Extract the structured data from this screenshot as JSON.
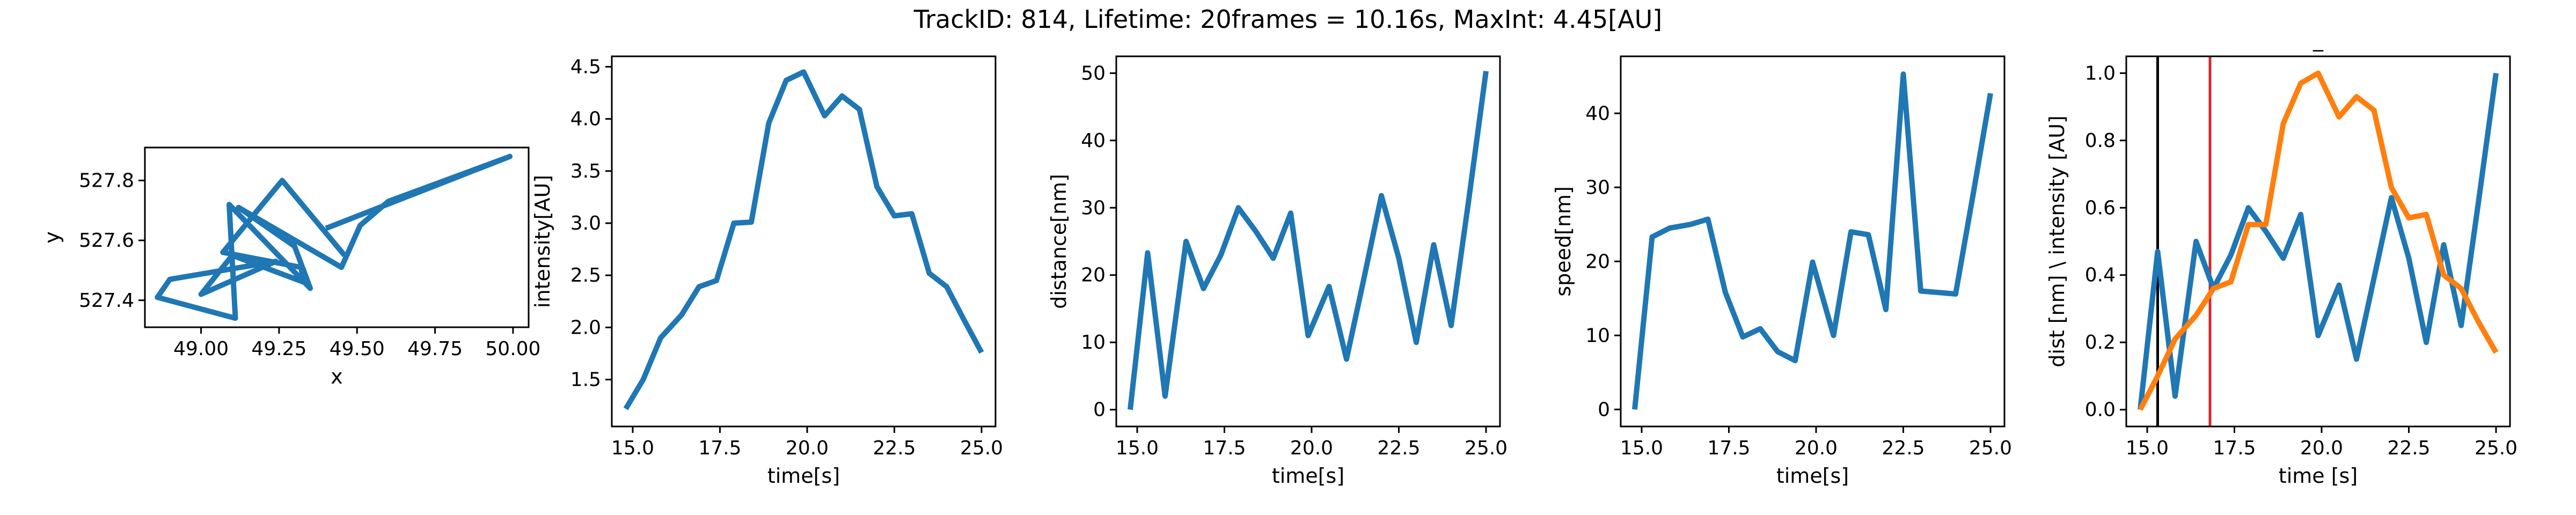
{
  "figure": {
    "title": "TrackID: 814, Lifetime: 20frames = 10.16s, MaxInt: 4.45[AU]"
  },
  "chart_data": [
    {
      "id": "xy",
      "type": "line",
      "title": "",
      "xlabel": "x",
      "ylabel": "y",
      "xlim": [
        48.82,
        50.05
      ],
      "ylim": [
        527.31,
        527.91
      ],
      "xticks": [
        49.0,
        49.25,
        49.5,
        49.75,
        50.0
      ],
      "xticklabels": [
        "49.00",
        "49.25",
        "49.50",
        "49.75",
        "50.00"
      ],
      "yticks": [
        527.4,
        527.6,
        527.8
      ],
      "yticklabels": [
        "527.4",
        "527.6",
        "527.8"
      ],
      "grid": false,
      "series": [
        {
          "color": "#1f77b4",
          "x": [
            49.4,
            49.99,
            49.6,
            49.51,
            49.45,
            49.12,
            49.3,
            49.35,
            49.09,
            49.11,
            48.86,
            48.9,
            49.24,
            49.0,
            49.1,
            49.33,
            49.32,
            49.07,
            49.26,
            49.46
          ],
          "y": [
            527.64,
            527.88,
            527.73,
            527.65,
            527.51,
            527.71,
            527.58,
            527.44,
            527.72,
            527.34,
            527.41,
            527.47,
            527.53,
            527.42,
            527.55,
            527.46,
            527.51,
            527.56,
            527.8,
            527.55
          ]
        }
      ]
    },
    {
      "id": "intensity",
      "type": "line",
      "title": "",
      "xlabel": "time[s]",
      "ylabel": "intensity[AU]",
      "xlim": [
        14.4,
        25.4
      ],
      "ylim": [
        1.05,
        4.6
      ],
      "xticks": [
        15,
        17.5,
        20,
        22.5,
        25
      ],
      "xticklabels": [
        "15.0",
        "17.5",
        "20.0",
        "22.5",
        "25.0"
      ],
      "yticks": [
        1.5,
        2.0,
        2.5,
        3.0,
        3.5,
        4.0,
        4.5
      ],
      "yticklabels": [
        "1.5",
        "2.0",
        "2.5",
        "3.0",
        "3.5",
        "4.0",
        "4.5"
      ],
      "grid": false,
      "series": [
        {
          "color": "#1f77b4",
          "x": [
            14.8,
            15.3,
            15.8,
            16.4,
            16.9,
            17.4,
            17.9,
            18.4,
            18.9,
            19.4,
            19.9,
            20.5,
            21.0,
            21.5,
            22.0,
            22.5,
            23.0,
            23.5,
            24.0,
            24.5,
            25.0
          ],
          "y": [
            1.22,
            1.5,
            1.9,
            2.12,
            2.39,
            2.45,
            3.0,
            3.01,
            3.96,
            4.37,
            4.45,
            4.03,
            4.22,
            4.09,
            3.35,
            3.07,
            3.09,
            2.52,
            2.39,
            2.07,
            1.76
          ]
        }
      ]
    },
    {
      "id": "distance",
      "type": "line",
      "title": "",
      "xlabel": "time[s]",
      "ylabel": "distance[nm]",
      "xlim": [
        14.4,
        25.4
      ],
      "ylim": [
        -2.5,
        52.5
      ],
      "xticks": [
        15,
        17.5,
        20,
        22.5,
        25
      ],
      "xticklabels": [
        "15.0",
        "17.5",
        "20.0",
        "22.5",
        "25.0"
      ],
      "yticks": [
        0,
        10,
        20,
        30,
        40,
        50
      ],
      "yticklabels": [
        "0",
        "10",
        "20",
        "30",
        "40",
        "50"
      ],
      "grid": false,
      "series": [
        {
          "color": "#1f77b4",
          "x": [
            14.8,
            15.3,
            15.8,
            16.4,
            16.9,
            17.4,
            17.9,
            18.4,
            18.9,
            19.4,
            19.9,
            20.5,
            21.0,
            21.5,
            22.0,
            22.5,
            23.0,
            23.5,
            24.0,
            24.5,
            25.0
          ],
          "y": [
            0,
            23.3,
            2.0,
            25.0,
            18.0,
            23.0,
            30.0,
            26.5,
            22.5,
            29.2,
            11.0,
            18.3,
            7.5,
            19.5,
            31.8,
            22.5,
            10.0,
            24.5,
            12.5,
            31.0,
            50.3
          ]
        }
      ]
    },
    {
      "id": "speed",
      "type": "line",
      "title": "",
      "xlabel": "time[s]",
      "ylabel": "speed[nm]",
      "xlim": [
        14.4,
        25.4
      ],
      "ylim": [
        -2.3,
        47.7
      ],
      "xticks": [
        15,
        17.5,
        20,
        22.5,
        25
      ],
      "xticklabels": [
        "15.0",
        "17.5",
        "20.0",
        "22.5",
        "25.0"
      ],
      "yticks": [
        0,
        10,
        20,
        30,
        40
      ],
      "yticklabels": [
        "0",
        "10",
        "20",
        "30",
        "40"
      ],
      "grid": false,
      "series": [
        {
          "color": "#1f77b4",
          "x": [
            14.8,
            15.3,
            15.8,
            16.4,
            16.9,
            17.4,
            17.9,
            18.4,
            18.9,
            19.4,
            19.9,
            20.5,
            21.0,
            21.5,
            22.0,
            22.5,
            23.0,
            23.5,
            24.0,
            24.5,
            25.0
          ],
          "y": [
            0,
            23.3,
            24.5,
            25.0,
            25.7,
            15.8,
            9.8,
            10.9,
            7.8,
            6.6,
            19.9,
            10.0,
            24.0,
            23.6,
            13.5,
            45.3,
            16.0,
            15.8,
            15.6,
            29.0,
            42.7
          ]
        }
      ]
    },
    {
      "id": "normalized",
      "type": "line",
      "title": "_",
      "xlabel": "time [s]",
      "ylabel": "dist [nm] \\ intensity [AU]",
      "xlim": [
        14.4,
        25.4
      ],
      "ylim": [
        -0.05,
        1.05
      ],
      "xticks": [
        15,
        17.5,
        20,
        22.5,
        25
      ],
      "xticklabels": [
        "15.0",
        "17.5",
        "20.0",
        "22.5",
        "25.0"
      ],
      "yticks": [
        0.0,
        0.2,
        0.4,
        0.6,
        0.8,
        1.0
      ],
      "yticklabels": [
        "0.0",
        "0.2",
        "0.4",
        "0.6",
        "0.8",
        "1.0"
      ],
      "grid": false,
      "vlines": [
        {
          "x": 15.3,
          "color": "#000000"
        },
        {
          "x": 16.8,
          "color": "#d62728"
        }
      ],
      "series": [
        {
          "color": "#1f77b4",
          "x": [
            14.8,
            15.3,
            15.8,
            16.4,
            16.9,
            17.4,
            17.9,
            18.4,
            18.9,
            19.4,
            19.9,
            20.5,
            21.0,
            21.5,
            22.0,
            22.5,
            23.0,
            23.5,
            24.0,
            24.5,
            25.0
          ],
          "y": [
            0,
            0.47,
            0.04,
            0.5,
            0.36,
            0.46,
            0.6,
            0.53,
            0.45,
            0.58,
            0.22,
            0.37,
            0.15,
            0.39,
            0.63,
            0.45,
            0.2,
            0.49,
            0.25,
            0.62,
            1.0
          ]
        },
        {
          "color": "#ff7f0e",
          "x": [
            14.8,
            15.3,
            15.8,
            16.4,
            16.9,
            17.4,
            17.9,
            18.4,
            18.9,
            19.4,
            19.9,
            20.5,
            21.0,
            21.5,
            22.0,
            22.5,
            23.0,
            23.5,
            24.0,
            24.5,
            25.0
          ],
          "y": [
            0,
            0.1,
            0.21,
            0.28,
            0.36,
            0.38,
            0.55,
            0.55,
            0.85,
            0.97,
            1.0,
            0.87,
            0.93,
            0.89,
            0.66,
            0.57,
            0.58,
            0.4,
            0.36,
            0.26,
            0.17
          ]
        }
      ]
    }
  ]
}
